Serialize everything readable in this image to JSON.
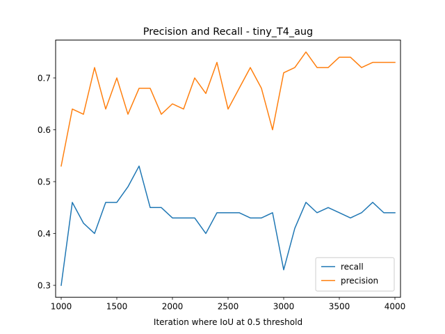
{
  "chart_data": {
    "type": "line",
    "title": "Precision and Recall - tiny_T4_aug",
    "xlabel": "Iteration where IoU at 0.5 threshold",
    "ylabel": "",
    "xlim": [
      950,
      4050
    ],
    "ylim": [
      0.277,
      0.773
    ],
    "x_ticks": [
      1000,
      1500,
      2000,
      2500,
      3000,
      3500,
      4000
    ],
    "y_ticks": [
      0.3,
      0.4,
      0.5,
      0.6,
      0.7
    ],
    "grid": false,
    "legend_position": "lower right",
    "x": [
      1000,
      1100,
      1200,
      1300,
      1400,
      1500,
      1600,
      1700,
      1800,
      1900,
      2000,
      2100,
      2200,
      2300,
      2400,
      2500,
      2600,
      2700,
      2800,
      2900,
      3000,
      3100,
      3200,
      3300,
      3400,
      3500,
      3600,
      3700,
      3800,
      3900,
      4000
    ],
    "series": [
      {
        "name": "recall",
        "color": "#1f77b4",
        "values": [
          0.3,
          0.46,
          0.42,
          0.4,
          0.46,
          0.46,
          0.49,
          0.53,
          0.45,
          0.45,
          0.43,
          0.43,
          0.43,
          0.4,
          0.44,
          0.44,
          0.44,
          0.43,
          0.43,
          0.44,
          0.33,
          0.41,
          0.46,
          0.44,
          0.45,
          0.44,
          0.43,
          0.44,
          0.46,
          0.44,
          0.44
        ]
      },
      {
        "name": "precision",
        "color": "#ff7f0e",
        "values": [
          0.53,
          0.64,
          0.63,
          0.72,
          0.64,
          0.7,
          0.63,
          0.68,
          0.68,
          0.63,
          0.65,
          0.64,
          0.7,
          0.67,
          0.73,
          0.64,
          0.68,
          0.72,
          0.68,
          0.6,
          0.71,
          0.72,
          0.75,
          0.72,
          0.72,
          0.74,
          0.74,
          0.72,
          0.73,
          0.73,
          0.73
        ]
      }
    ]
  }
}
